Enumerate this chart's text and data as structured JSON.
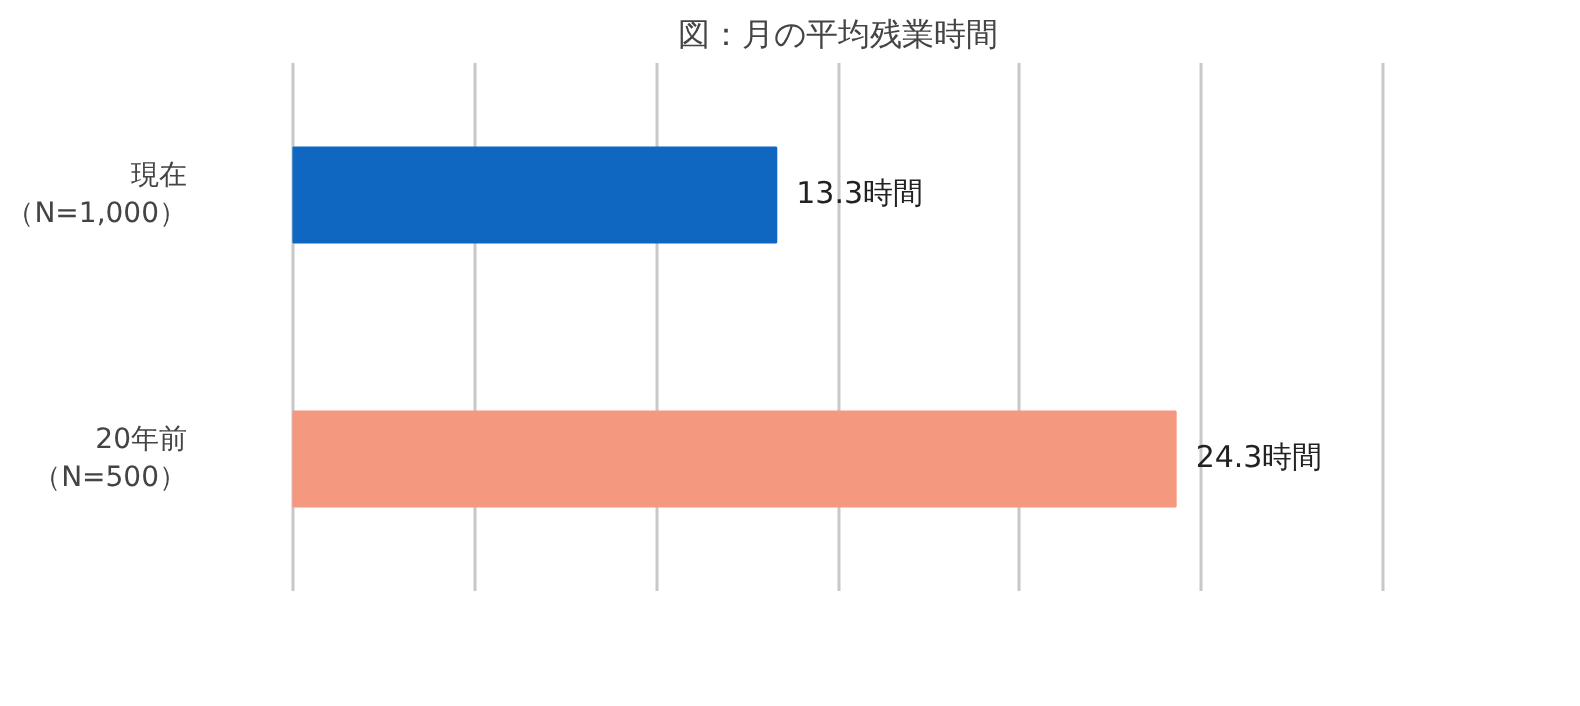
{
  "chart_data": {
    "type": "bar",
    "orientation": "horizontal",
    "title": "図：月の平均残業時間",
    "categories": [
      "現在（N=1,000）",
      "20年前（N=500）"
    ],
    "values": [
      13.3,
      24.3
    ],
    "colors": [
      "#0f67c1",
      "#f4987f"
    ],
    "value_labels": [
      "13.3時間",
      "24.3時間"
    ],
    "xticks": [
      {
        "value": 0,
        "label": null
      },
      {
        "value": 5,
        "label": null
      },
      {
        "value": 10,
        "label": null
      },
      {
        "value": 15,
        "label": null
      },
      {
        "value": 20,
        "label": null
      },
      {
        "value": 25,
        "label": null
      },
      {
        "value": 30,
        "label": null
      }
    ],
    "grid": "x",
    "tick_labels": "y"
  }
}
